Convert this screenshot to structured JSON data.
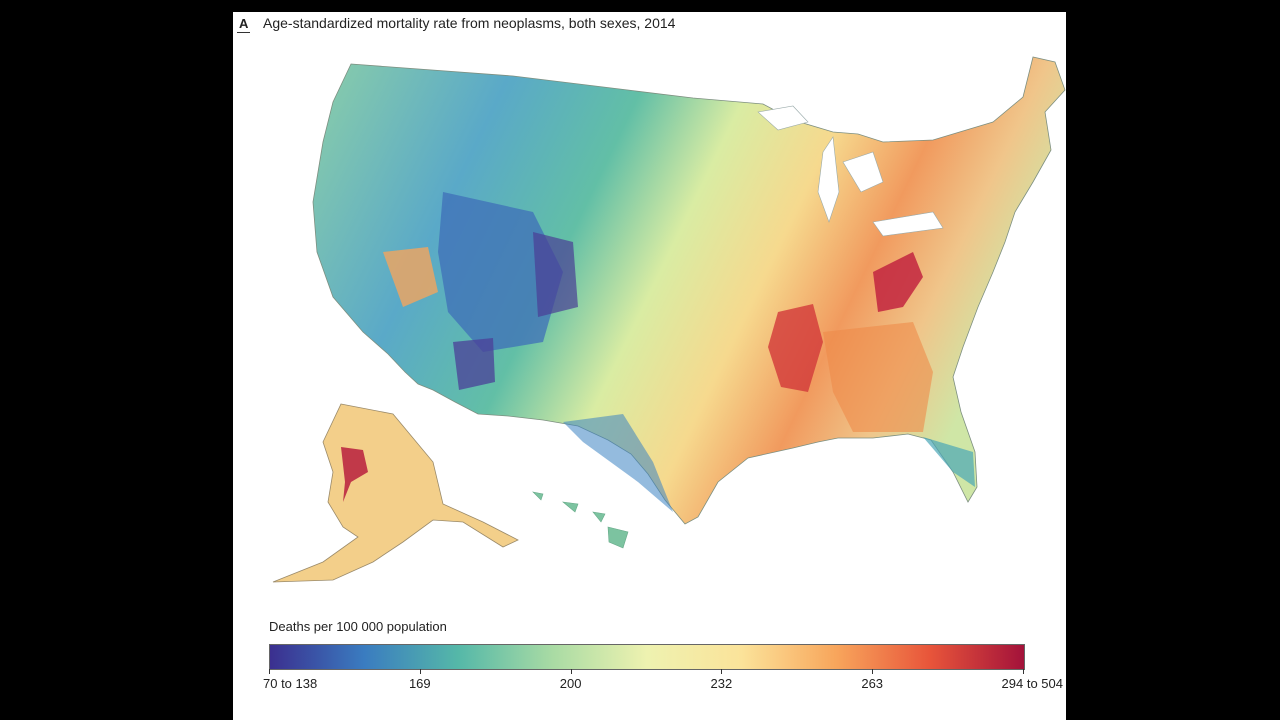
{
  "figure": {
    "panel_letter": "A",
    "title": "Age-standardized mortality rate from neoplasms, both sexes, 2014"
  },
  "map": {
    "regions": [
      "Contiguous United States",
      "Alaska",
      "Hawaii"
    ],
    "color_scale": [
      "#3b2f8f",
      "#3a7cc0",
      "#55b8a8",
      "#a9dba4",
      "#eef2b0",
      "#fbe39a",
      "#f8a65c",
      "#e8553a",
      "#a3123a"
    ]
  },
  "legend": {
    "title": "Deaths per 100 000 population",
    "ticks": [
      "70 to 138",
      "169",
      "200",
      "232",
      "263",
      "294 to 504"
    ]
  }
}
